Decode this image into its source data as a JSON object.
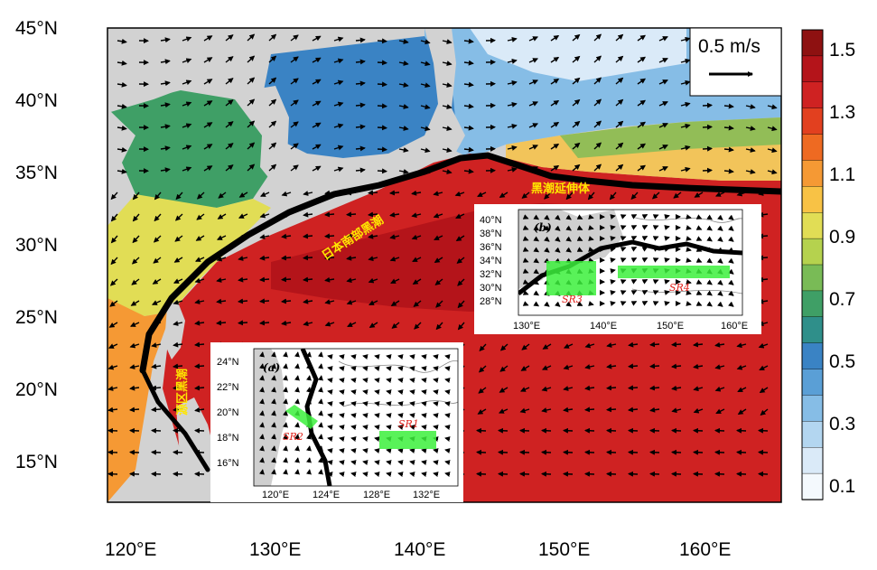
{
  "main_map": {
    "lat_labels": [
      "45°N",
      "40°N",
      "35°N",
      "30°N",
      "25°N",
      "20°N",
      "15°N"
    ],
    "lon_labels": [
      "120°E",
      "130°E",
      "140°E",
      "150°E",
      "160°E"
    ],
    "current_labels": {
      "kuroshio_source": "源区黑潮",
      "kuroshio_south_japan": "日本南部黑潮",
      "kuroshio_extension": "黑潮延伸体"
    },
    "reference_vector": "0.5 m/s"
  },
  "colorbar": {
    "labels": [
      "1.5",
      "1.3",
      "1.1",
      "0.9",
      "0.7",
      "0.5",
      "0.3",
      "0.1"
    ],
    "colors": [
      "#8e1111",
      "#b4141a",
      "#cf2222",
      "#e2401f",
      "#ee6a22",
      "#f59934",
      "#f8c245",
      "#e1dd55",
      "#b5d24e",
      "#79bb56",
      "#3f9f66",
      "#2f8f8a",
      "#3a83c4",
      "#5a9fd6",
      "#86bde6",
      "#b3d6f0",
      "#daeaf8",
      "#f4f9fd"
    ]
  },
  "inset_a": {
    "title": "(a)",
    "lat_labels": [
      "24°N",
      "22°N",
      "20°N",
      "18°N",
      "16°N"
    ],
    "lon_labels": [
      "120°E",
      "124°E",
      "128°E",
      "132°E"
    ],
    "regions": [
      "SR1",
      "SR2"
    ]
  },
  "inset_b": {
    "title": "(b)",
    "lat_labels": [
      "40°N",
      "38°N",
      "36°N",
      "34°N",
      "32°N",
      "30°N",
      "28°N"
    ],
    "lon_labels": [
      "130°E",
      "140°E",
      "150°E",
      "160°E"
    ],
    "regions": [
      "SR3",
      "SR4"
    ]
  },
  "palette": {
    "land": "#d0d0d0",
    "region_fill": "#3cf03c",
    "region_label": "#e0201a",
    "current_label": "#ffe600"
  }
}
